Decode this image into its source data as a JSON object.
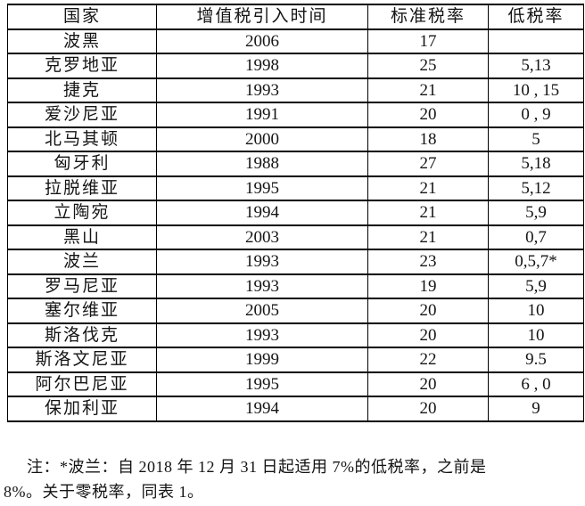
{
  "table": {
    "headers": [
      "国家",
      "增值税引入时间",
      "标准税率",
      "低税率"
    ],
    "rows": [
      [
        "波黑",
        "2006",
        "17",
        ""
      ],
      [
        "克罗地亚",
        "1998",
        "25",
        "5,13"
      ],
      [
        "捷克",
        "1993",
        "21",
        "10 , 15"
      ],
      [
        "爱沙尼亚",
        "1991",
        "20",
        "0 , 9"
      ],
      [
        "北马其顿",
        "2000",
        "18",
        "5"
      ],
      [
        "匈牙利",
        "1988",
        "27",
        "5,18"
      ],
      [
        "拉脱维亚",
        "1995",
        "21",
        "5,12"
      ],
      [
        "立陶宛",
        "1994",
        "21",
        "5,9"
      ],
      [
        "黑山",
        "2003",
        "21",
        "0,7"
      ],
      [
        "波兰",
        "1993",
        "23",
        "0,5,7*"
      ],
      [
        "罗马尼亚",
        "1993",
        "19",
        "5,9"
      ],
      [
        "塞尔维亚",
        "2005",
        "20",
        "10"
      ],
      [
        "斯洛伐克",
        "1993",
        "20",
        "10"
      ],
      [
        "斯洛文尼亚",
        "1999",
        "22",
        "9.5"
      ],
      [
        "阿尔巴尼亚",
        "1995",
        "20",
        "6 , 0"
      ],
      [
        "保加利亚",
        "1994",
        "20",
        "9"
      ]
    ]
  },
  "note": {
    "line1": "注：*波兰：自 2018 年 12 月 31 日起适用 7%的低税率，之前是",
    "line2": "8%。关于零税率，同表 1。"
  },
  "colors": {
    "text": "#141414",
    "border": "#000000",
    "background": "#ffffff"
  }
}
